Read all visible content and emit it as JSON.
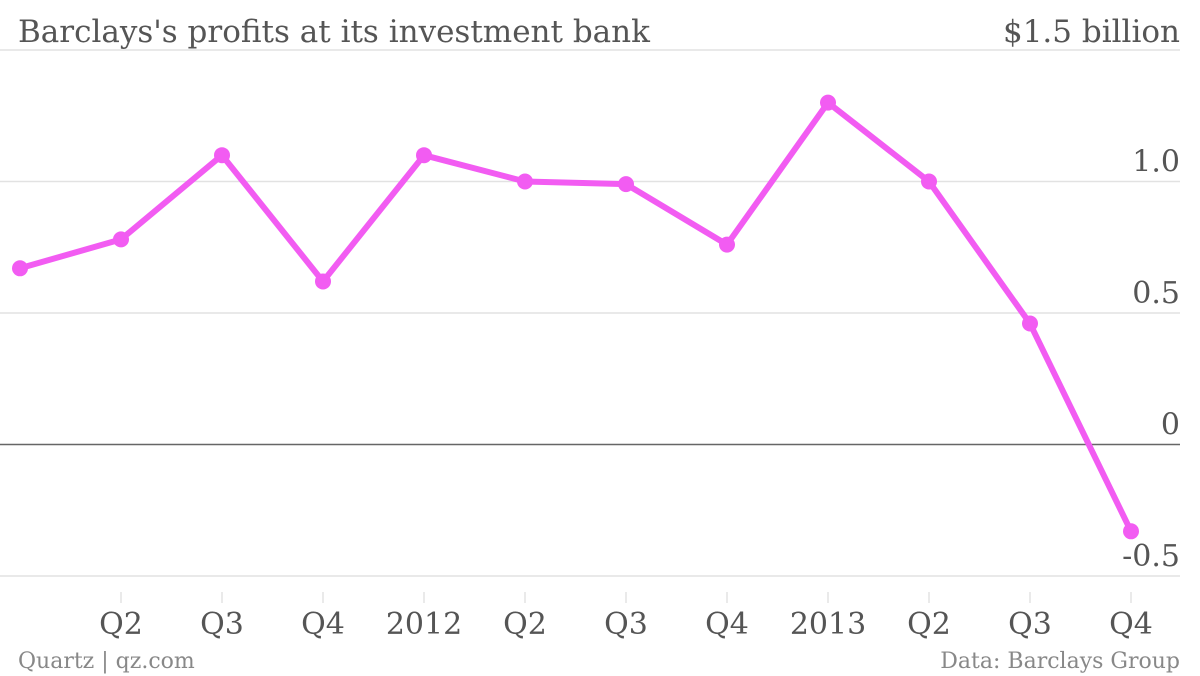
{
  "chart_data": {
    "type": "line",
    "title": "Barclays's profits at its investment bank",
    "unit_label": "$1.5 billion",
    "source": "Data: Barclays Group",
    "credit": "Quartz | qz.com",
    "categories": [
      "",
      "Q2",
      "Q3",
      "Q4",
      "2012",
      "Q2",
      "Q3",
      "Q4",
      "2013",
      "Q2",
      "Q3",
      "Q4"
    ],
    "series": [
      {
        "values": [
          0.67,
          0.78,
          1.1,
          0.62,
          1.1,
          1.0,
          0.99,
          0.76,
          1.3,
          1.0,
          0.46,
          -0.33
        ]
      }
    ],
    "yticks": [
      {
        "value": 1.5,
        "label": ""
      },
      {
        "value": 1.0,
        "label": "1.0"
      },
      {
        "value": 0.5,
        "label": "0.5"
      },
      {
        "value": 0,
        "label": "0"
      },
      {
        "value": -0.5,
        "label": "-0.5"
      }
    ],
    "ylim": [
      -0.5,
      1.5
    ],
    "grid": true,
    "color": "#f25cf2"
  }
}
